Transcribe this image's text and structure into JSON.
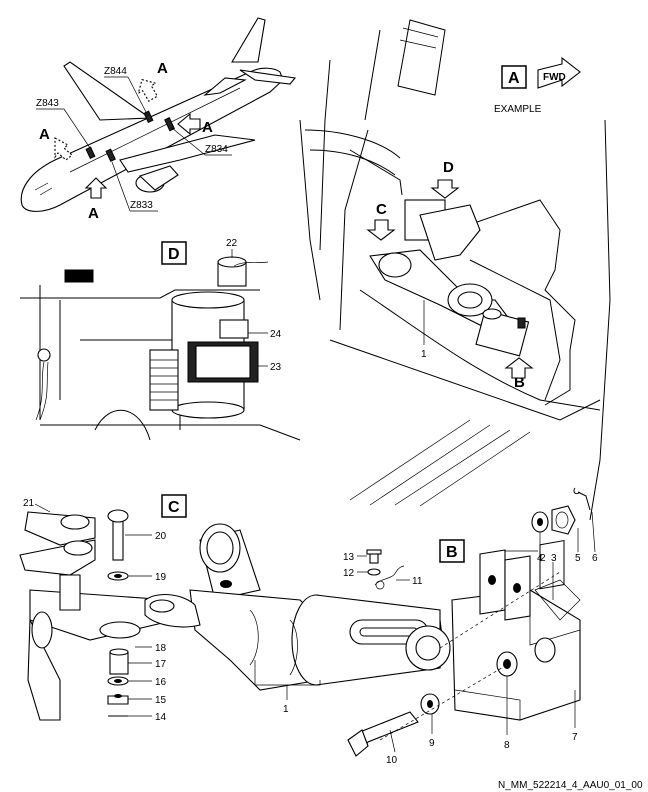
{
  "aircraft_view": {
    "zones": [
      "Z844",
      "Z843",
      "Z834",
      "Z833"
    ],
    "view_arrow_label": "A"
  },
  "view_a": {
    "title": "A",
    "fwd_label": "FWD",
    "caption": "EXAMPLE",
    "callouts": [
      "D",
      "C",
      "B"
    ],
    "item_label": "1"
  },
  "view_d": {
    "title": "D",
    "items": [
      "22",
      "24",
      "23"
    ]
  },
  "view_c": {
    "title": "C",
    "items": [
      "21",
      "20",
      "19",
      "18",
      "17",
      "16",
      "15",
      "14"
    ]
  },
  "view_b": {
    "title": "B",
    "items": [
      "2",
      "3",
      "4",
      "5",
      "6",
      "7",
      "8",
      "9",
      "10"
    ]
  },
  "center_items": [
    "13",
    "12",
    "11",
    "1"
  ],
  "figure_id": "N_MM_522214_4_AAU0_01_00"
}
